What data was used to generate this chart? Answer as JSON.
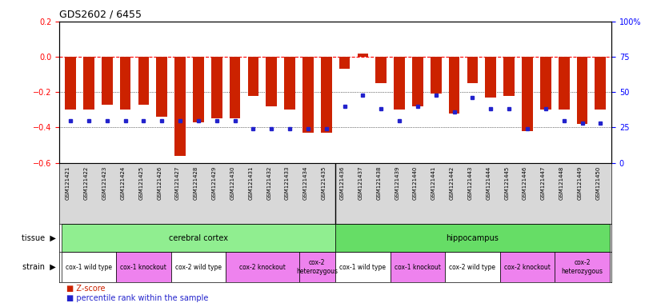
{
  "title": "GDS2602 / 6455",
  "samples": [
    "GSM121421",
    "GSM121422",
    "GSM121423",
    "GSM121424",
    "GSM121425",
    "GSM121426",
    "GSM121427",
    "GSM121428",
    "GSM121429",
    "GSM121430",
    "GSM121431",
    "GSM121432",
    "GSM121433",
    "GSM121434",
    "GSM121435",
    "GSM121436",
    "GSM121437",
    "GSM121438",
    "GSM121439",
    "GSM121440",
    "GSM121441",
    "GSM121442",
    "GSM121443",
    "GSM121444",
    "GSM121445",
    "GSM121446",
    "GSM121447",
    "GSM121448",
    "GSM121449",
    "GSM121450"
  ],
  "zscore": [
    -0.3,
    -0.3,
    -0.27,
    -0.3,
    -0.27,
    -0.34,
    -0.56,
    -0.37,
    -0.35,
    -0.35,
    -0.22,
    -0.28,
    -0.3,
    -0.43,
    -0.43,
    -0.07,
    0.02,
    -0.15,
    -0.3,
    -0.28,
    -0.21,
    -0.32,
    -0.15,
    -0.23,
    -0.22,
    -0.42,
    -0.3,
    -0.3,
    -0.38,
    -0.3
  ],
  "percentile": [
    30,
    30,
    30,
    30,
    30,
    30,
    30,
    30,
    30,
    30,
    24,
    24,
    24,
    24,
    24,
    40,
    48,
    38,
    30,
    40,
    48,
    36,
    46,
    38,
    38,
    24,
    38,
    30,
    28,
    28
  ],
  "tissue_regions": [
    {
      "label": "cerebral cortex",
      "start": 0,
      "end": 15,
      "color": "#90ee90"
    },
    {
      "label": "hippocampus",
      "start": 15,
      "end": 30,
      "color": "#66dd66"
    }
  ],
  "strain_regions": [
    {
      "label": "cox-1 wild type",
      "start": 0,
      "end": 3,
      "color": "#ffffff"
    },
    {
      "label": "cox-1 knockout",
      "start": 3,
      "end": 6,
      "color": "#ee82ee"
    },
    {
      "label": "cox-2 wild type",
      "start": 6,
      "end": 9,
      "color": "#ffffff"
    },
    {
      "label": "cox-2 knockout",
      "start": 9,
      "end": 13,
      "color": "#ee82ee"
    },
    {
      "label": "cox-2\nheterozygous",
      "start": 13,
      "end": 15,
      "color": "#ee82ee"
    },
    {
      "label": "cox-1 wild type",
      "start": 15,
      "end": 18,
      "color": "#ffffff"
    },
    {
      "label": "cox-1 knockout",
      "start": 18,
      "end": 21,
      "color": "#ee82ee"
    },
    {
      "label": "cox-2 wild type",
      "start": 21,
      "end": 24,
      "color": "#ffffff"
    },
    {
      "label": "cox-2 knockout",
      "start": 24,
      "end": 27,
      "color": "#ee82ee"
    },
    {
      "label": "cox-2\nheterozygous",
      "start": 27,
      "end": 30,
      "color": "#ee82ee"
    }
  ],
  "bar_color": "#cc2200",
  "dot_color": "#2222cc",
  "ylim_left": [
    -0.6,
    0.2
  ],
  "ylim_right": [
    0,
    100
  ],
  "yticks_left": [
    0.2,
    0.0,
    -0.2,
    -0.4,
    -0.6
  ],
  "yticks_right": [
    100,
    75,
    50,
    25,
    0
  ],
  "bar_width": 0.6,
  "bg_color": "#d8d8d8",
  "plot_bg": "#ffffff"
}
